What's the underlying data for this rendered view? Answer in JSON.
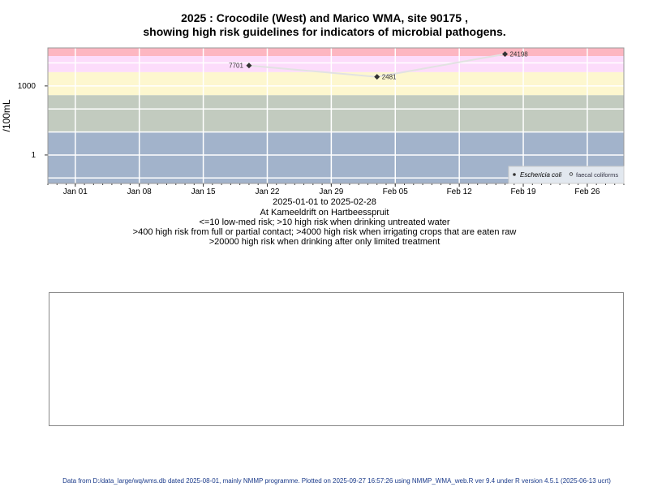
{
  "chart_data": {
    "type": "scatter",
    "title_line1": "2025 : Crocodile (West) and Marico WMA, site 90175 ,",
    "title_line2": "showing high risk guidelines for indicators of microbial pathogens.",
    "xlabel": "2025-01-01 to 2025-02-28",
    "ylabel": "/100mL",
    "y_scale": "log",
    "ylim": [
      0.058,
      45000
    ],
    "xlim": [
      "2024-12-29",
      "2025-03-02"
    ],
    "y_ticks": [
      {
        "value": 1,
        "label": "1"
      },
      {
        "value": 1000,
        "label": "1000"
      }
    ],
    "x_ticks": [
      {
        "date": "2025-01-01",
        "label": "Jan 01"
      },
      {
        "date": "2025-01-08",
        "label": "Jan 08"
      },
      {
        "date": "2025-01-15",
        "label": "Jan 15"
      },
      {
        "date": "2025-01-22",
        "label": "Jan 22"
      },
      {
        "date": "2025-01-29",
        "label": "Jan 29"
      },
      {
        "date": "2025-02-05",
        "label": "Feb 05"
      },
      {
        "date": "2025-02-12",
        "label": "Feb 12"
      },
      {
        "date": "2025-02-19",
        "label": "Feb 19"
      },
      {
        "date": "2025-02-26",
        "label": "Feb 26"
      }
    ],
    "grid": true,
    "bands": [
      {
        "from": 0.058,
        "to": 10,
        "color": "#a2b3cb"
      },
      {
        "from": 10,
        "to": 400,
        "color": "#c2cbbf"
      },
      {
        "from": 400,
        "to": 4000,
        "color": "#fdf7cf"
      },
      {
        "from": 4000,
        "to": 20000,
        "color": "#fcdcfb"
      },
      {
        "from": 20000,
        "to": 45000,
        "color": "#fdb6c1"
      }
    ],
    "series": [
      {
        "name": "Eschericia coli",
        "marker": "filled-diamond",
        "color": "#333333",
        "points": [
          {
            "date": "2025-01-20",
            "value": 7701,
            "label": "7701"
          },
          {
            "date": "2025-02-03",
            "value": 2481,
            "label": "2481"
          },
          {
            "date": "2025-02-17",
            "value": 24198,
            "label": "24198"
          }
        ]
      },
      {
        "name": "faecal coliforms",
        "marker": "open-circle",
        "color": "#333333",
        "points": []
      }
    ],
    "legend_placement": "bottom-right",
    "annotations": [
      "At Kameeldrift on Hartbeesspruit",
      "<=10 low-med risk; >10 high risk when drinking untreated water",
      ">400 high risk from full or partial contact; >4000 high risk when irrigating crops that are eaten raw",
      ">20000 high risk when drinking after only limited treatment"
    ]
  },
  "footer": "Data from D:/data_large/wq/wms.db dated 2025-08-01, mainly NMMP programme. Plotted on 2025-09-27 16:57:26 using NMMP_WMA_web.R ver 9.4 under R version 4.5.1 (2025-06-13 ucrt)"
}
